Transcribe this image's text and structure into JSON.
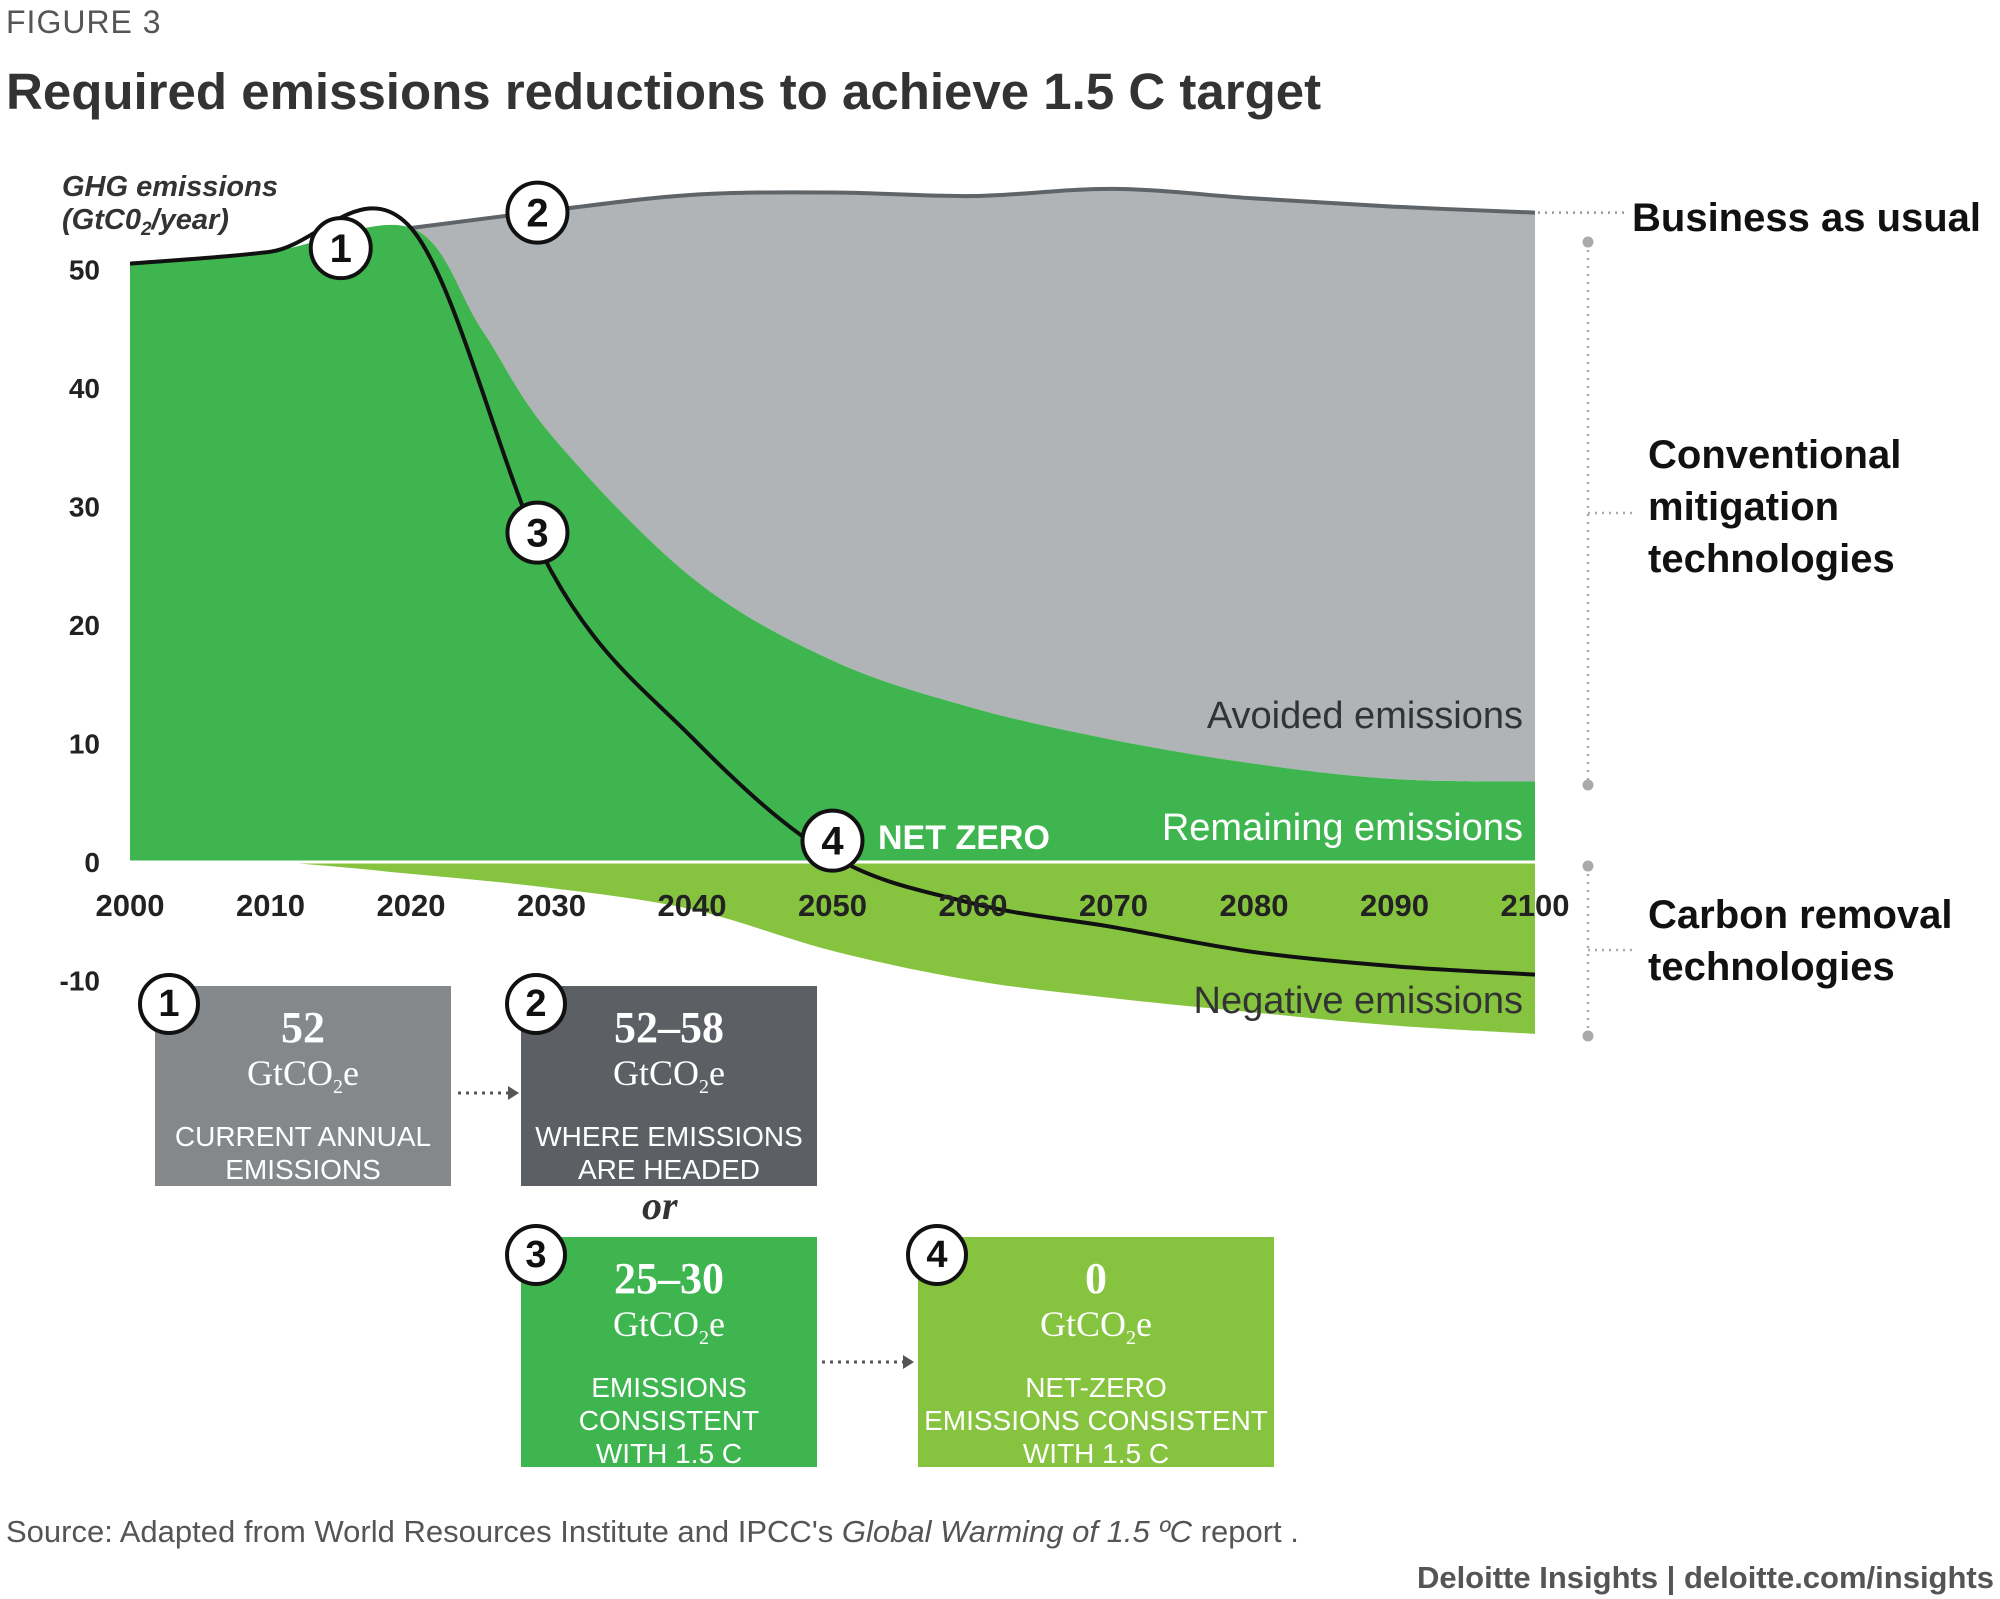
{
  "figure_label": "FIGURE 3",
  "title": "Required emissions reductions to achieve 1.5 C target",
  "colors": {
    "bau_gray": "#b1b4b6",
    "bau_line": "#5f6468",
    "green": "#3fb550",
    "light_green": "#86c440",
    "box_gray_light": "#85888b",
    "box_gray_dark": "#5c5f64",
    "box_green": "#3fb550",
    "box_light_green": "#86c440"
  },
  "chart_data": {
    "type": "area",
    "ylabel_line1": "GHG emissions",
    "ylabel_line2": "(GtC0",
    "ylabel_sub": "2",
    "ylabel_line2_end": "/year)",
    "y_ticks": [
      50,
      40,
      30,
      20,
      10,
      0,
      -10
    ],
    "ylim": [
      -13,
      58
    ],
    "x_ticks": [
      2000,
      2010,
      2020,
      2030,
      2040,
      2050,
      2060,
      2070,
      2080,
      2090,
      2100
    ],
    "xlim": [
      2000,
      2100
    ],
    "series": [
      {
        "name": "Business as usual",
        "x": [
          2020,
          2030,
          2040,
          2050,
          2060,
          2070,
          2080,
          2090,
          2100
        ],
        "values": [
          53.5,
          55,
          56.3,
          56.5,
          56.2,
          56.8,
          56.0,
          55.3,
          54.8
        ]
      },
      {
        "name": "Remaining emissions",
        "x": [
          2000,
          2010,
          2020,
          2025,
          2030,
          2040,
          2050,
          2060,
          2070,
          2080,
          2090,
          2100
        ],
        "values": [
          50.5,
          51.5,
          53.5,
          45,
          36,
          24,
          17,
          13,
          10.3,
          8.3,
          7.0,
          6.8
        ]
      },
      {
        "name": "Negative emissions",
        "x": [
          2000,
          2010,
          2020,
          2030,
          2040,
          2050,
          2060,
          2070,
          2080,
          2090,
          2100
        ],
        "values": [
          0,
          0,
          -1.0,
          -2.2,
          -4.0,
          -7.5,
          -10.0,
          -11.5,
          -12.7,
          -13.8,
          -14.5
        ]
      },
      {
        "name": "Net emissions pathway",
        "x": [
          2000,
          2010,
          2020,
          2030,
          2040,
          2050,
          2060,
          2070,
          2080,
          2090,
          2100
        ],
        "values": [
          50.5,
          51.5,
          53.5,
          24.5,
          10.5,
          0.5,
          -3.5,
          -5.5,
          -7.6,
          -8.8,
          -9.5
        ]
      }
    ],
    "area_labels": {
      "avoided": "Avoided emissions",
      "remaining": "Remaining emissions",
      "negative": "Negative emissions",
      "net_zero": "NET ZERO"
    },
    "markers": [
      {
        "label": "1",
        "x": 2015,
        "y": 51.8
      },
      {
        "label": "2",
        "x": 2029,
        "y": 54.8
      },
      {
        "label": "3",
        "x": 2029,
        "y": 27.8
      },
      {
        "label": "4",
        "x": 2050,
        "y": 1.8
      }
    ],
    "right_labels": {
      "bau": "Business as usual",
      "conventional": [
        "Conventional",
        "mitigation",
        "technologies"
      ],
      "carbon_removal": [
        "Carbon removal",
        "technologies"
      ]
    }
  },
  "boxes": [
    {
      "num": "1",
      "value": "52",
      "unit_pre": "GtCO",
      "unit_sub": "2",
      "unit_post": "e",
      "desc": "CURRENT ANNUAL\nEMISSIONS"
    },
    {
      "num": "2",
      "value": "52–58",
      "unit_pre": "GtCO",
      "unit_sub": "2",
      "unit_post": "e",
      "desc": "WHERE EMISSIONS\nARE HEADED"
    },
    {
      "num": "3",
      "value": "25–30",
      "unit_pre": "GtCO",
      "unit_sub": "2",
      "unit_post": "e",
      "desc": "EMISSIONS\nCONSISTENT\nWITH 1.5 C"
    },
    {
      "num": "4",
      "value": "0",
      "unit_pre": "GtCO",
      "unit_sub": "2",
      "unit_post": "e",
      "desc": "NET-ZERO\nEMISSIONS CONSISTENT\nWITH 1.5 C"
    }
  ],
  "or_word": "or",
  "source_prefix": "Source: Adapted from World Resources Institute and IPCC's ",
  "source_italic": "Global Warming of 1.5 ºC",
  "source_suffix": " report .",
  "credit": "Deloitte Insights | deloitte.com/insights"
}
